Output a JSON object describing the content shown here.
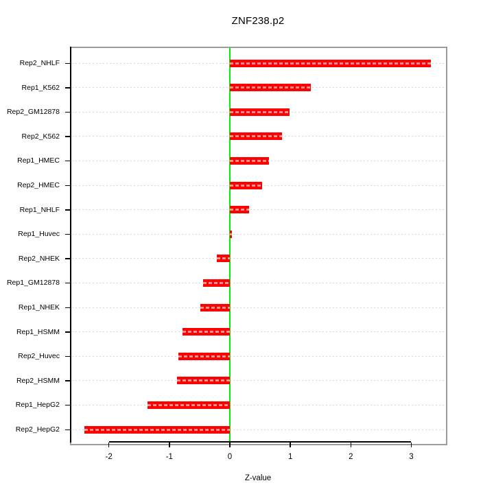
{
  "title": "ZNF238.p2",
  "chart_data": {
    "type": "bar",
    "orientation": "horizontal",
    "title": "ZNF238.p2",
    "xlabel": "Z-value",
    "ylabel": "",
    "xlim": [
      -2.62,
      3.55
    ],
    "xticks": [
      -2,
      -1,
      0,
      1,
      2,
      3
    ],
    "grid": "dotted horizontal line per category, full plot width",
    "zero_line_x": 0,
    "legend": "none",
    "categories_top_to_bottom": [
      "Rep2_NHLF",
      "Rep1_K562",
      "Rep2_GM12878",
      "Rep2_K562",
      "Rep1_HMEC",
      "Rep2_HMEC",
      "Rep1_NHLF",
      "Rep1_Huvec",
      "Rep2_NHEK",
      "Rep1_GM12878",
      "Rep1_NHEK",
      "Rep1_HSMM",
      "Rep2_Huvec",
      "Rep2_HSMM",
      "Rep1_HepG2",
      "Rep2_HepG2"
    ],
    "values": [
      3.32,
      1.34,
      0.99,
      0.86,
      0.65,
      0.53,
      0.32,
      0.03,
      -0.21,
      -0.44,
      -0.49,
      -0.78,
      -0.85,
      -0.87,
      -1.36,
      -2.4
    ]
  },
  "colors": {
    "bar": "#ff0000",
    "bar_inner_dash": "#ff9494",
    "zero_line": "#00ee00",
    "gridline": "#d4d4d4",
    "box_border": "#9c9c9c",
    "axis": "#000000",
    "background": "#ffffff",
    "text": "#000000"
  }
}
